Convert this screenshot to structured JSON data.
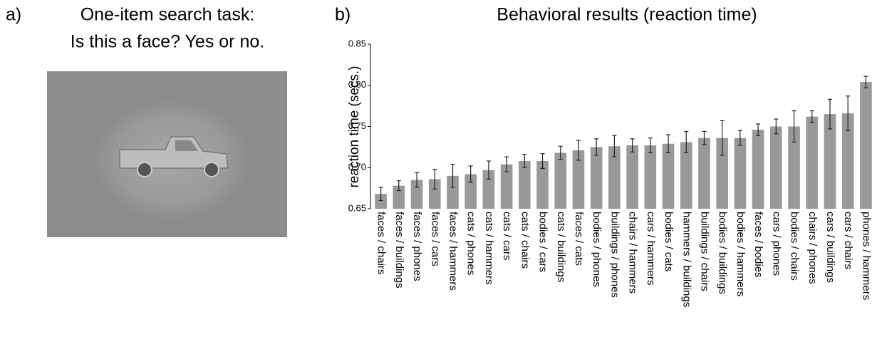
{
  "panel_a": {
    "label": "a)",
    "title_lines": [
      "One-item search task:",
      "Is this a face? Yes or no."
    ]
  },
  "chart_data": {
    "type": "bar",
    "panel_label": "b)",
    "title": "Behavioral results (reaction time)",
    "y_label": "reaction time (secs.)",
    "categories": [
      "faces / chairs",
      "faces / buildings",
      "faces / phones",
      "faces / cars",
      "faces / hammers",
      "cats / phones",
      "cats / hammers",
      "cats / cars",
      "cats / chairs",
      "bodies / cars",
      "cats / buildings",
      "faces / cats",
      "bodies / phones",
      "buildings / phones",
      "chairs / hammers",
      "cars / hammers",
      "bodies / cats",
      "hammers / buildings",
      "buildings / chairs",
      "bodies / buildings",
      "bodies / hammers",
      "faces / bodies",
      "cars / phones",
      "bodies / chairs",
      "chairs / phones",
      "cars / buildings",
      "cars / chairs",
      "phones / hammers"
    ],
    "values": [
      0.668,
      0.678,
      0.685,
      0.686,
      0.69,
      0.692,
      0.697,
      0.704,
      0.708,
      0.708,
      0.718,
      0.721,
      0.725,
      0.726,
      0.727,
      0.727,
      0.729,
      0.731,
      0.736,
      0.736,
      0.736,
      0.746,
      0.75,
      0.75,
      0.762,
      0.765,
      0.766,
      0.804
    ],
    "errors": [
      0.008,
      0.006,
      0.009,
      0.012,
      0.014,
      0.01,
      0.011,
      0.009,
      0.008,
      0.009,
      0.008,
      0.012,
      0.01,
      0.013,
      0.008,
      0.009,
      0.011,
      0.013,
      0.008,
      0.021,
      0.009,
      0.007,
      0.009,
      0.019,
      0.007,
      0.018,
      0.021,
      0.007
    ],
    "color": "#999999",
    "ylim": [
      0.65,
      0.85
    ],
    "yticks": [
      0.65,
      {
        "value": 0.7,
        "label": "0.70"
      },
      0.75,
      {
        "value": 0.8,
        "label": "0.80"
      },
      0.85
    ]
  }
}
